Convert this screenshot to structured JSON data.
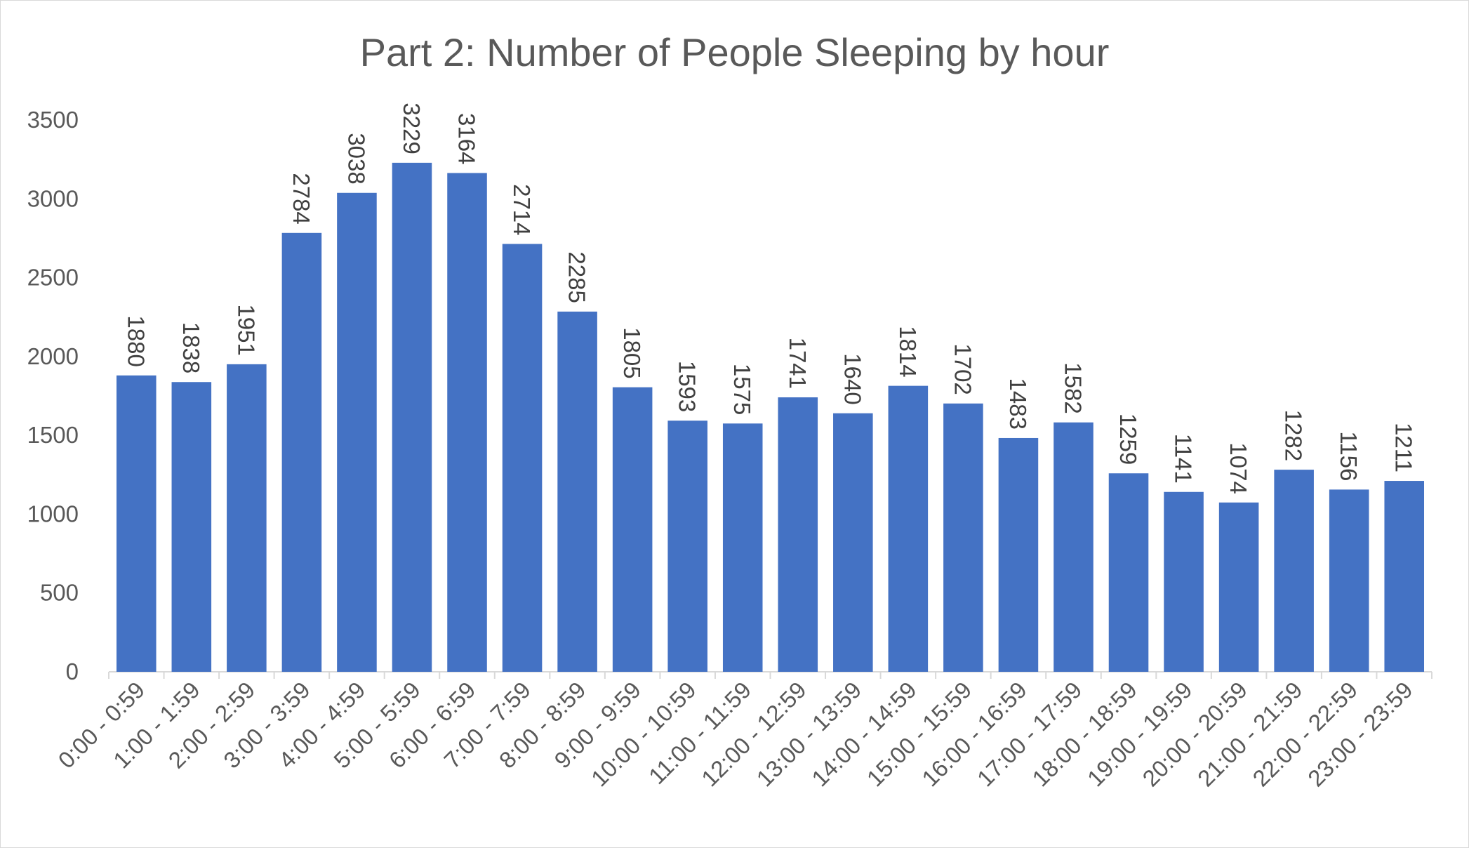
{
  "chart_data": {
    "type": "bar",
    "title": "Part 2: Number of People Sleeping by hour",
    "xlabel": "",
    "ylabel": "",
    "ylim": [
      0,
      3500
    ],
    "yticks": [
      0,
      500,
      1000,
      1500,
      2000,
      2500,
      3000,
      3500
    ],
    "grid": false,
    "legend": "none",
    "bar_color": "#4472c4",
    "categories": [
      "0:00 - 0:59",
      "1:00 - 1:59",
      "2:00 - 2:59",
      "3:00 - 3:59",
      "4:00 - 4:59",
      "5:00 - 5:59",
      "6:00 - 6:59",
      "7:00 - 7:59",
      "8:00 - 8:59",
      "9:00 - 9:59",
      "10:00 - 10:59",
      "11:00 - 11:59",
      "12:00 - 12:59",
      "13:00 - 13:59",
      "14:00 - 14:59",
      "15:00 - 15:59",
      "16:00 - 16:59",
      "17:00 - 17:59",
      "18:00 - 18:59",
      "19:00 - 19:59",
      "20:00 - 20:59",
      "21:00 - 21:59",
      "22:00 - 22:59",
      "23:00 - 23:59"
    ],
    "values": [
      1880,
      1838,
      1951,
      2784,
      3038,
      3229,
      3164,
      2714,
      2285,
      1805,
      1593,
      1575,
      1741,
      1640,
      1814,
      1702,
      1483,
      1582,
      1259,
      1141,
      1074,
      1282,
      1156,
      1211
    ]
  }
}
